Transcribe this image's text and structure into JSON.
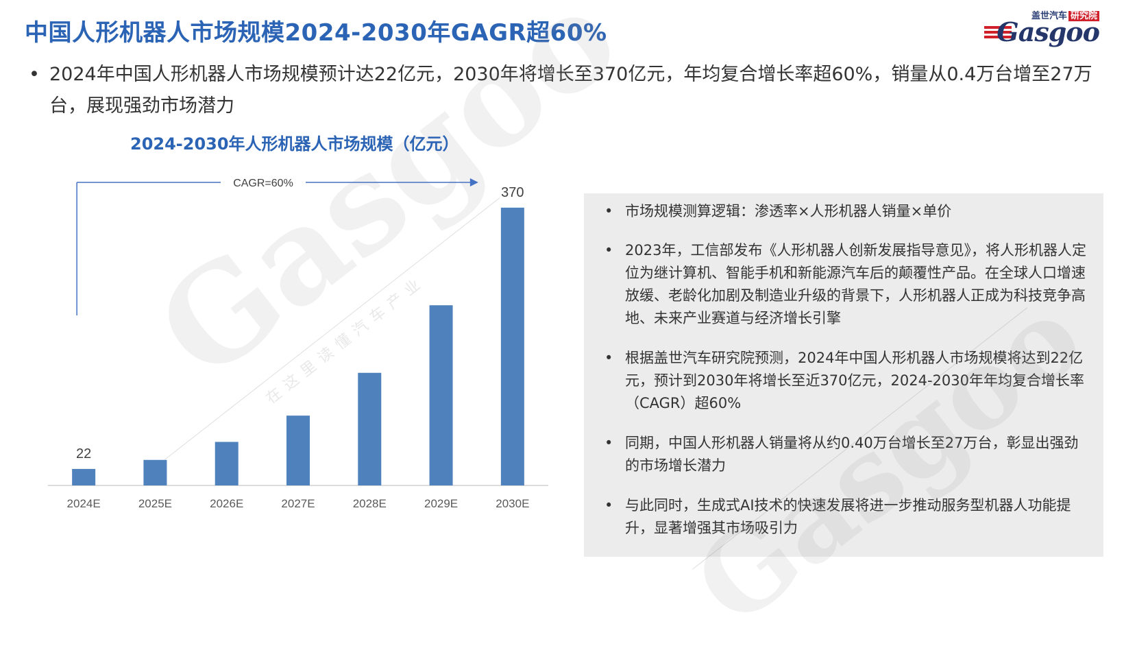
{
  "header": {
    "title": "中国人形机器人市场规模2024-2030年GAGR超60%",
    "brand_cn": "盖世汽车",
    "brand_tag": "研究院",
    "brand_en": "Gasgoo"
  },
  "summary": {
    "bullet": "•",
    "text": "2024年中国人形机器人市场规模预计达22亿元，2030年将增长至370亿元，年均复合增长率超60%，销量从0.4万台增至27万台，展现强劲市场潜力"
  },
  "chart_data": {
    "type": "bar",
    "title": "2024-2030年人形机器人市场规模（亿元）",
    "categories": [
      "2024E",
      "2025E",
      "2026E",
      "2027E",
      "2028E",
      "2029E",
      "2030E"
    ],
    "values": [
      22,
      34,
      58,
      93,
      150,
      240,
      370
    ],
    "data_labels": [
      {
        "category": "2024E",
        "label": "22"
      },
      {
        "category": "2030E",
        "label": "370"
      }
    ],
    "annotation": "CAGR=60%",
    "ylim": [
      0,
      400
    ],
    "grid": false,
    "bar_color": "#4f81bd"
  },
  "panel": {
    "bullet": "•",
    "items": [
      "市场规模测算逻辑：渗透率×人形机器人销量×单价",
      "2023年，工信部发布《人形机器人创新发展指导意见》，将人形机器人定位为继计算机、智能手机和新能源汽车后的颠覆性产品。在全球人口增速放缓、老龄化加剧及制造业升级的背景下，人形机器人正成为科技竞争高地、未来产业赛道与经济增长引擎",
      "根据盖世汽车研究院预测，2024年中国人形机器人市场规模将达到22亿元，预计到2030年将增长至近370亿元，2024-2030年年均复合增长率（CAGR）超60%",
      "同期，中国人形机器人销量将从约0.40万台增长至27万台，彰显出强劲的市场增长潜力",
      "与此同时，生成式AI技术的快速发展将进一步推动服务型机器人功能提升，显著增强其市场吸引力"
    ]
  },
  "watermark": {
    "text": "盖世汽车研究院",
    "logo_text": "Gasgoo",
    "slogan": "在这里读懂汽车产业"
  }
}
